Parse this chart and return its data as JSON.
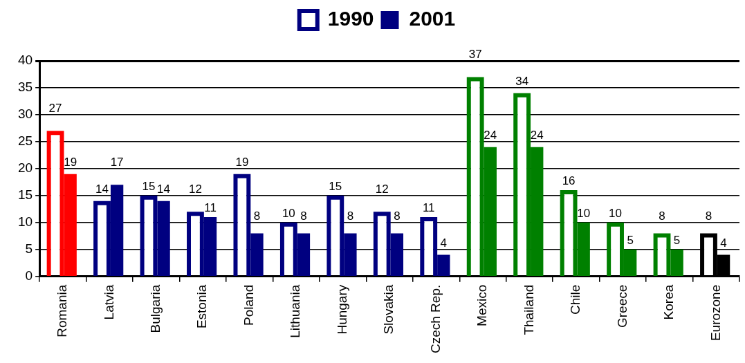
{
  "chart_data": {
    "type": "bar",
    "categories": [
      "Romania",
      "Latvia",
      "Bulgaria",
      "Estonia",
      "Poland",
      "Lithuania",
      "Hungary",
      "Slovakia",
      "Czech Rep.",
      "Mexico",
      "Thailand",
      "Chile",
      "Greece",
      "Korea",
      "Eurozone"
    ],
    "series": [
      {
        "name": "1990",
        "color": "#000080",
        "colors": [
          "#ff0000",
          "#000080",
          "#000080",
          "#000080",
          "#000080",
          "#000080",
          "#000080",
          "#000080",
          "#000080",
          "#008000",
          "#008000",
          "#008000",
          "#008000",
          "#008000",
          "#000000"
        ],
        "values": [
          27,
          14,
          15,
          12,
          19,
          10,
          15,
          12,
          11,
          37,
          34,
          16,
          10,
          8,
          8
        ]
      },
      {
        "name": "2001",
        "color": "#000080",
        "colors": [
          "#ff0000",
          "#000080",
          "#000080",
          "#000080",
          "#000080",
          "#000080",
          "#000080",
          "#000080",
          "#000080",
          "#008000",
          "#008000",
          "#008000",
          "#008000",
          "#008000",
          "#000000"
        ],
        "values": [
          19,
          17,
          14,
          11,
          8,
          8,
          8,
          8,
          4,
          24,
          24,
          10,
          5,
          5,
          4
        ]
      }
    ],
    "ylim": [
      0,
      40
    ],
    "yticks": [
      0,
      5,
      10,
      15,
      20,
      25,
      30,
      35,
      40
    ],
    "grid": "y",
    "legend": "top",
    "data_labels": true
  }
}
